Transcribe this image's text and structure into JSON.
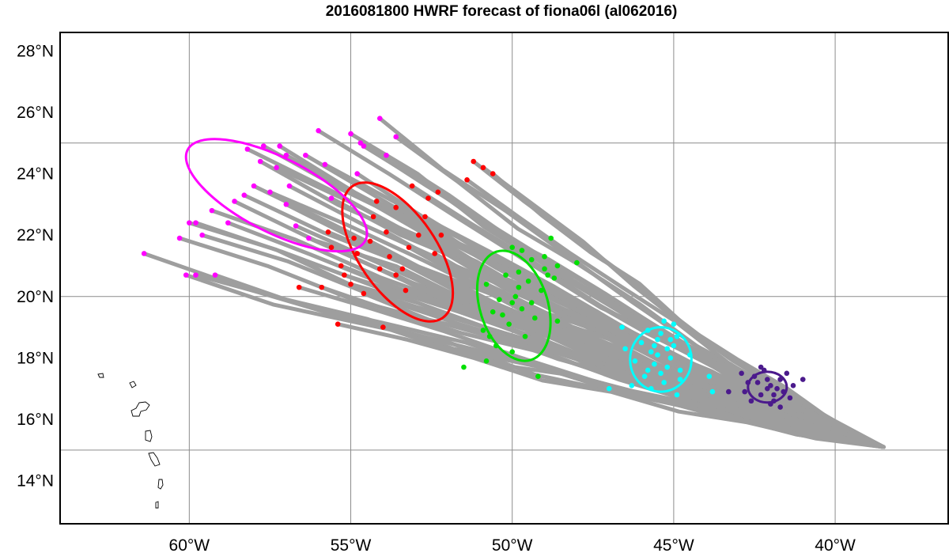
{
  "chart_data": {
    "type": "scatter",
    "title": "2016081800 HWRF forecast of fiona06l (al062016)",
    "x_ticks": [
      {
        "value": -60,
        "label": "60°W"
      },
      {
        "value": -55,
        "label": "55°W"
      },
      {
        "value": -50,
        "label": "50°W"
      },
      {
        "value": -45,
        "label": "45°W"
      },
      {
        "value": -40,
        "label": "40°W"
      }
    ],
    "y_ticks": [
      {
        "value": 14,
        "label": "14°N"
      },
      {
        "value": 16,
        "label": "16°N"
      },
      {
        "value": 18,
        "label": "18°N"
      },
      {
        "value": 20,
        "label": "20°N"
      },
      {
        "value": 22,
        "label": "22°N"
      },
      {
        "value": 24,
        "label": "24°N"
      },
      {
        "value": 26,
        "label": "26°N"
      },
      {
        "value": 28,
        "label": "28°N"
      }
    ],
    "grid_lon": [
      -60,
      -55,
      -50,
      -45,
      -40
    ],
    "grid_lat": [
      15,
      20,
      25
    ],
    "xlim": [
      -64,
      -36.5
    ],
    "ylim": [
      12.6,
      28.6
    ],
    "colors": {
      "tracks": "#9e9e9e",
      "grid": "#8c8c8c",
      "series": [
        "#4b1a8c",
        "#00ffff",
        "#00e000",
        "#ff0000",
        "#ff00ff"
      ]
    },
    "series": [
      {
        "color": "#4b1a8c",
        "ellipse": {
          "cx": -42.1,
          "cy": 17.05,
          "rx": 0.6,
          "ry": 0.5,
          "rot": 0
        },
        "points": [
          [
            -42.0,
            17.1
          ],
          [
            -42.3,
            16.8
          ],
          [
            -41.7,
            17.3
          ],
          [
            -42.5,
            17.4
          ],
          [
            -41.6,
            16.9
          ],
          [
            -42.2,
            17.6
          ],
          [
            -42.8,
            16.9
          ],
          [
            -41.9,
            16.6
          ],
          [
            -42.6,
            16.6
          ],
          [
            -41.3,
            17.1
          ],
          [
            -42.1,
            17.0
          ],
          [
            -41.8,
            17.0
          ],
          [
            -42.4,
            17.2
          ],
          [
            -41.5,
            17.5
          ],
          [
            -42.7,
            17.2
          ],
          [
            -42.0,
            16.5
          ],
          [
            -41.0,
            17.3
          ],
          [
            -43.3,
            16.9
          ],
          [
            -42.3,
            17.7
          ],
          [
            -41.4,
            16.7
          ],
          [
            -42.9,
            17.5
          ],
          [
            -41.7,
            16.4
          ],
          [
            -42.1,
            17.3
          ],
          [
            -41.9,
            16.8
          ]
        ]
      },
      {
        "color": "#00ffff",
        "ellipse": {
          "cx": -45.4,
          "cy": 17.95,
          "rx": 0.95,
          "ry": 1.05,
          "rot": 0
        },
        "points": [
          [
            -45.3,
            19.2
          ],
          [
            -45.0,
            19.1
          ],
          [
            -45.8,
            18.9
          ],
          [
            -44.9,
            18.7
          ],
          [
            -45.5,
            18.6
          ],
          [
            -45.2,
            18.3
          ],
          [
            -45.7,
            18.2
          ],
          [
            -45.1,
            18.0
          ],
          [
            -45.6,
            17.8
          ],
          [
            -45.4,
            17.5
          ],
          [
            -45.9,
            17.4
          ],
          [
            -44.8,
            17.6
          ],
          [
            -45.3,
            17.2
          ],
          [
            -45.7,
            17.0
          ],
          [
            -44.9,
            16.8
          ],
          [
            -46.0,
            18.5
          ],
          [
            -46.2,
            17.9
          ],
          [
            -45.0,
            18.4
          ],
          [
            -45.4,
            18.8
          ],
          [
            -46.5,
            18.3
          ],
          [
            -47.0,
            17.0
          ],
          [
            -46.3,
            17.1
          ],
          [
            -45.6,
            18.4
          ],
          [
            -44.5,
            18.1
          ],
          [
            -43.9,
            17.4
          ],
          [
            -43.8,
            16.9
          ],
          [
            -45.5,
            18.1
          ],
          [
            -45.2,
            17.7
          ],
          [
            -45.8,
            17.6
          ],
          [
            -45.1,
            18.6
          ],
          [
            -46.6,
            19.0
          ],
          [
            -44.8,
            17.3
          ]
        ]
      },
      {
        "color": "#00e000",
        "ellipse": {
          "cx": -49.95,
          "cy": 19.7,
          "rx": 1.05,
          "ry": 1.85,
          "rot": -0.31
        },
        "points": [
          [
            -48.8,
            21.9
          ],
          [
            -49.0,
            21.3
          ],
          [
            -48.6,
            21.0
          ],
          [
            -48.0,
            21.1
          ],
          [
            -49.4,
            21.2
          ],
          [
            -49.8,
            20.8
          ],
          [
            -50.2,
            20.7
          ],
          [
            -49.5,
            20.5
          ],
          [
            -50.8,
            20.4
          ],
          [
            -49.1,
            20.2
          ],
          [
            -49.9,
            20.0
          ],
          [
            -50.4,
            19.9
          ],
          [
            -50.0,
            19.8
          ],
          [
            -49.7,
            19.6
          ],
          [
            -50.6,
            19.5
          ],
          [
            -49.3,
            19.3
          ],
          [
            -50.1,
            19.1
          ],
          [
            -50.9,
            18.9
          ],
          [
            -49.6,
            18.7
          ],
          [
            -50.5,
            18.4
          ],
          [
            -50.0,
            18.2
          ],
          [
            -48.6,
            19.2
          ],
          [
            -49.2,
            17.4
          ],
          [
            -50.8,
            17.9
          ],
          [
            -51.5,
            17.7
          ],
          [
            -49.7,
            21.5
          ],
          [
            -50.3,
            19.4
          ],
          [
            -48.9,
            20.7
          ],
          [
            -49.4,
            19.8
          ],
          [
            -50.7,
            18.7
          ],
          [
            -49.8,
            20.3
          ],
          [
            -50.0,
            21.6
          ],
          [
            -48.7,
            20.6
          ],
          [
            -49.0,
            20.9
          ]
        ]
      },
      {
        "color": "#ff0000",
        "ellipse": {
          "cx": -53.55,
          "cy": 21.45,
          "rx": 1.2,
          "ry": 2.6,
          "rot": -0.6
        },
        "points": [
          [
            -51.2,
            24.4
          ],
          [
            -50.9,
            24.2
          ],
          [
            -50.6,
            24.0
          ],
          [
            -51.4,
            23.8
          ],
          [
            -52.6,
            23.2
          ],
          [
            -53.1,
            23.6
          ],
          [
            -53.6,
            22.9
          ],
          [
            -54.2,
            23.1
          ],
          [
            -52.7,
            22.6
          ],
          [
            -53.9,
            22.1
          ],
          [
            -54.4,
            21.8
          ],
          [
            -53.2,
            21.6
          ],
          [
            -54.8,
            21.4
          ],
          [
            -55.3,
            21.0
          ],
          [
            -55.6,
            21.6
          ],
          [
            -54.1,
            20.9
          ],
          [
            -53.6,
            20.7
          ],
          [
            -55.0,
            20.4
          ],
          [
            -55.9,
            20.3
          ],
          [
            -54.6,
            20.1
          ],
          [
            -53.3,
            20.2
          ],
          [
            -52.9,
            22.0
          ],
          [
            -52.4,
            21.4
          ],
          [
            -56.6,
            20.3
          ],
          [
            -55.4,
            19.1
          ],
          [
            -54.0,
            19.0
          ],
          [
            -52.3,
            23.4
          ],
          [
            -54.9,
            21.9
          ],
          [
            -55.2,
            20.7
          ],
          [
            -53.8,
            21.3
          ],
          [
            -54.3,
            22.6
          ],
          [
            -52.2,
            22.0
          ],
          [
            -55.7,
            22.1
          ],
          [
            -53.4,
            20.9
          ]
        ]
      },
      {
        "color": "#ff00ff",
        "ellipse": {
          "cx": -57.3,
          "cy": 23.3,
          "rx": 1.15,
          "ry": 3.25,
          "rot": -1.1
        },
        "points": [
          [
            -54.1,
            25.8
          ],
          [
            -53.6,
            25.2
          ],
          [
            -55.0,
            25.3
          ],
          [
            -56.0,
            25.4
          ],
          [
            -57.2,
            24.9
          ],
          [
            -57.7,
            24.9
          ],
          [
            -57.0,
            24.6
          ],
          [
            -56.4,
            24.6
          ],
          [
            -55.8,
            24.3
          ],
          [
            -54.6,
            24.9
          ],
          [
            -53.9,
            24.6
          ],
          [
            -54.8,
            24.0
          ],
          [
            -57.3,
            24.2
          ],
          [
            -57.8,
            24.4
          ],
          [
            -57.5,
            23.4
          ],
          [
            -57.0,
            23.0
          ],
          [
            -58.0,
            23.6
          ],
          [
            -58.3,
            23.3
          ],
          [
            -58.6,
            23.1
          ],
          [
            -58.8,
            22.4
          ],
          [
            -59.3,
            22.8
          ],
          [
            -59.8,
            22.4
          ],
          [
            -60.0,
            22.4
          ],
          [
            -59.6,
            22.0
          ],
          [
            -60.3,
            21.9
          ],
          [
            -60.1,
            20.7
          ],
          [
            -59.8,
            20.7
          ],
          [
            -59.2,
            20.7
          ],
          [
            -61.4,
            21.4
          ],
          [
            -56.7,
            22.3
          ],
          [
            -56.3,
            21.9
          ],
          [
            -55.6,
            23.2
          ],
          [
            -54.7,
            25.0
          ],
          [
            -58.2,
            24.8
          ],
          [
            -56.9,
            23.6
          ]
        ]
      }
    ]
  }
}
